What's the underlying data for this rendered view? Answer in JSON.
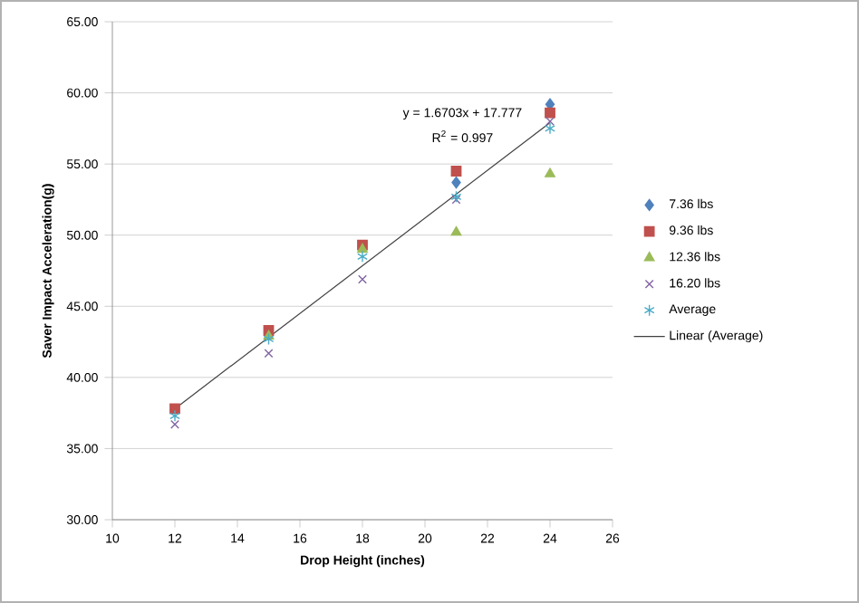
{
  "chart_data": {
    "type": "scatter",
    "xlabel": "Drop Height (inches)",
    "ylabel": "Saver Impact Acceleration(g)",
    "xlim": [
      10,
      26
    ],
    "xticks": [
      10,
      12,
      14,
      16,
      18,
      20,
      22,
      24,
      26
    ],
    "ylim": [
      30,
      65
    ],
    "yticks": [
      {
        "value": 30,
        "label": "30.00"
      },
      {
        "value": 35,
        "label": "35.00"
      },
      {
        "value": 40,
        "label": "40.00"
      },
      {
        "value": 45,
        "label": "45.00"
      },
      {
        "value": 50,
        "label": "50.00"
      },
      {
        "value": 55,
        "label": "55.00"
      },
      {
        "value": 60,
        "label": "60.00"
      },
      {
        "value": 65,
        "label": "65.00"
      }
    ],
    "x": [
      12,
      15,
      18,
      21,
      24
    ],
    "series": [
      {
        "name": "7.36 lbs",
        "color": "#4f81bd",
        "marker": "diamond",
        "values": [
          null,
          null,
          null,
          53.7,
          59.2
        ]
      },
      {
        "name": "9.36 lbs",
        "color": "#c0504d",
        "marker": "square",
        "values": [
          37.8,
          43.3,
          49.3,
          54.5,
          58.6
        ]
      },
      {
        "name": "12.36 lbs",
        "color": "#9bbb59",
        "marker": "triangle",
        "values": [
          null,
          42.9,
          49.0,
          50.2,
          54.3
        ]
      },
      {
        "name": "16.20 lbs",
        "color": "#8064a2",
        "marker": "cross",
        "values": [
          36.7,
          41.7,
          46.9,
          52.5,
          58.0
        ]
      },
      {
        "name": "Average",
        "color": "#4bacc6",
        "values": [
          37.3,
          42.7,
          48.5,
          52.7,
          57.5
        ]
      },
      {
        "name": "Linear (Average)",
        "type": "line",
        "color": "#404040",
        "marker": "none",
        "x": [
          12,
          24
        ],
        "values": [
          37.8,
          57.9
        ]
      }
    ],
    "annotations": [
      "y = 1.6703x + 17.777",
      "R$^{2}$ = 0.997"
    ],
    "grid": "y",
    "legend": "right"
  }
}
